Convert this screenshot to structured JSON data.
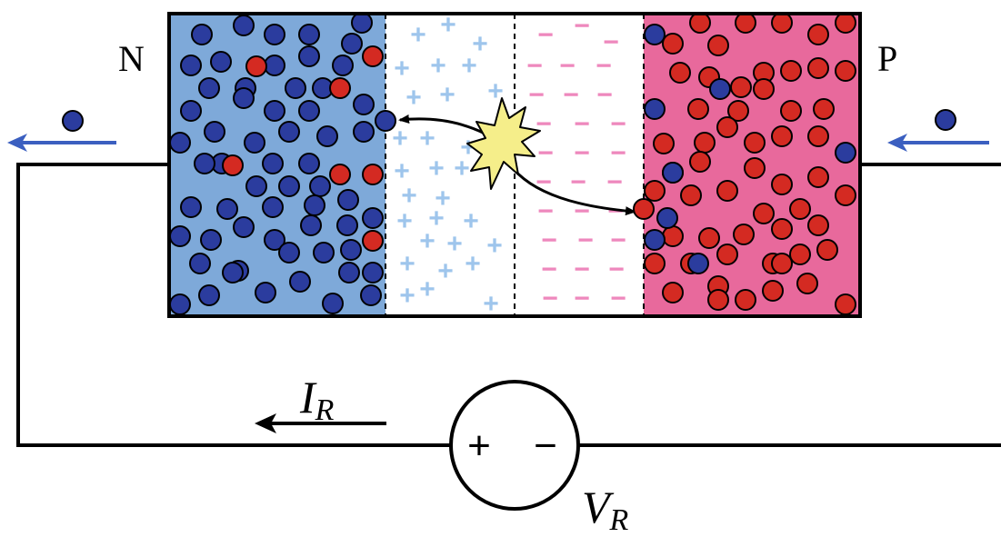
{
  "labels": {
    "n_region": "N",
    "p_region": "P",
    "current": "I",
    "current_sub": "R",
    "voltage": "V",
    "voltage_sub": "R",
    "source_plus": "+",
    "source_minus": "−"
  },
  "charges": {
    "positive_symbol": "+",
    "negative_symbol": "−"
  },
  "colors": {
    "n_region": "#7ea9d9",
    "p_region": "#e8699c",
    "electron": "#2b3c9e",
    "hole": "#d42a22",
    "positive_ion": "#9ec5ec",
    "negative_ion": "#ee88bd",
    "flow_arrow": "#3b5fc0",
    "generation_spark": "#f5ee8a"
  },
  "icons": {
    "generation_event": "spark-icon",
    "carrier_electron": "electron-icon",
    "carrier_hole": "hole-icon"
  }
}
